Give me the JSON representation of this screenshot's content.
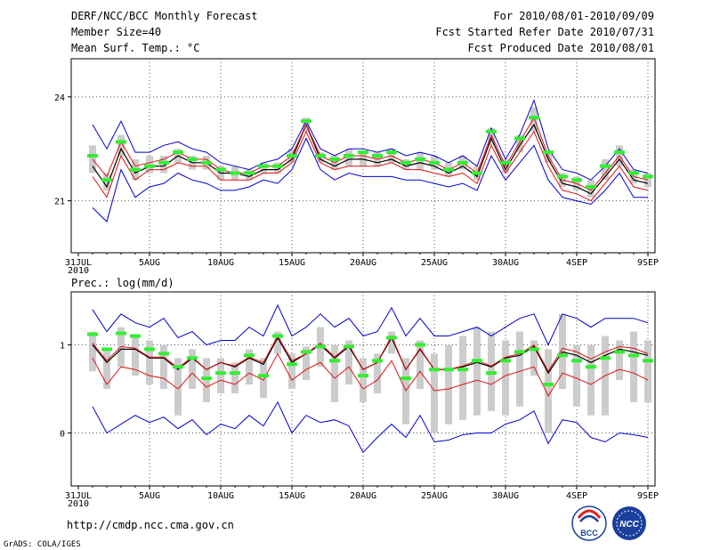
{
  "header": {
    "title": "DERF/NCC/BCC Monthly Forecast",
    "member_size": "Member Size=40",
    "variable": "Mean Surf. Temp.: °C",
    "period": "For 2010/08/01-2010/09/09",
    "started": "Fcst Started Refer Date 2010/07/31",
    "produced": "Fcst Produced Date 2010/08/01"
  },
  "footer": {
    "url": "http://cmdp.ncc.cma.gov.cn",
    "credit": "GrADS: COLA/IGES",
    "logo_bcc": "BCC",
    "logo_ncc": "NCC"
  },
  "colors": {
    "observed": "#33ee33",
    "spread_box": "#cccccc",
    "ensemble_mean": "#000000",
    "inner_band": "#dd1111",
    "outer_band": "#0000cc"
  },
  "chart_data": [
    {
      "type": "line",
      "panel": "temperature",
      "title": "Mean Surf. Temp.: °C",
      "x_tick_labels": [
        "31JUL",
        "5AUG",
        "10AUG",
        "15AUG",
        "20AUG",
        "25AUG",
        "30AUG",
        "4SEP",
        "9SEP"
      ],
      "x_tick_days": [
        0,
        5,
        10,
        15,
        20,
        25,
        30,
        35,
        40
      ],
      "year_label": "2010",
      "y_ticks": [
        21,
        24
      ],
      "ylim": [
        19.5,
        25.1
      ],
      "x": [
        1,
        2,
        3,
        4,
        5,
        6,
        7,
        8,
        9,
        10,
        11,
        12,
        13,
        14,
        15,
        16,
        17,
        18,
        19,
        20,
        21,
        22,
        23,
        24,
        25,
        26,
        27,
        28,
        29,
        30,
        31,
        32,
        33,
        34,
        35,
        36,
        37,
        38,
        39,
        40
      ],
      "series": [
        {
          "name": "ensemble mean",
          "values": [
            22.0,
            21.4,
            22.5,
            21.8,
            22.0,
            22.0,
            22.3,
            22.1,
            22.1,
            21.8,
            21.8,
            21.7,
            21.9,
            21.9,
            22.2,
            23.2,
            22.2,
            22.0,
            22.2,
            22.2,
            22.1,
            22.2,
            22.0,
            22.1,
            22.0,
            21.8,
            22.0,
            21.7,
            22.8,
            21.9,
            22.6,
            23.2,
            22.2,
            21.5,
            21.4,
            21.2,
            21.7,
            22.2,
            21.6,
            21.5
          ]
        },
        {
          "name": "upper outer",
          "values": [
            23.2,
            22.5,
            23.3,
            22.4,
            22.4,
            22.6,
            22.7,
            22.5,
            22.4,
            22.1,
            22.0,
            21.9,
            22.1,
            22.2,
            22.5,
            23.3,
            22.5,
            22.3,
            22.5,
            22.5,
            22.4,
            22.5,
            22.3,
            22.4,
            22.3,
            22.1,
            22.3,
            22.0,
            23.1,
            22.2,
            22.9,
            23.9,
            22.5,
            21.9,
            21.8,
            21.6,
            22.0,
            22.5,
            21.9,
            21.8
          ]
        },
        {
          "name": "upper inner",
          "values": [
            22.2,
            21.7,
            22.7,
            22.0,
            22.1,
            22.2,
            22.4,
            22.2,
            22.2,
            21.9,
            21.8,
            21.8,
            22.0,
            22.0,
            22.3,
            23.2,
            22.3,
            22.1,
            22.3,
            22.3,
            22.2,
            22.3,
            22.1,
            22.2,
            22.1,
            21.9,
            22.1,
            21.8,
            22.9,
            22.0,
            22.7,
            23.4,
            22.3,
            21.6,
            21.5,
            21.3,
            21.8,
            22.3,
            21.7,
            21.6
          ]
        },
        {
          "name": "lower inner",
          "values": [
            21.7,
            21.1,
            22.3,
            21.6,
            21.9,
            21.9,
            22.1,
            22.0,
            22.0,
            21.6,
            21.6,
            21.6,
            21.8,
            21.8,
            22.1,
            23.0,
            22.1,
            21.9,
            22.0,
            22.0,
            22.0,
            22.1,
            21.9,
            21.9,
            21.8,
            21.7,
            21.8,
            21.5,
            22.6,
            21.8,
            22.4,
            23.0,
            22.0,
            21.3,
            21.2,
            21.0,
            21.5,
            22.0,
            21.4,
            21.3
          ]
        },
        {
          "name": "lower outer",
          "values": [
            20.8,
            20.4,
            21.9,
            21.1,
            21.4,
            21.5,
            21.8,
            21.6,
            21.5,
            21.3,
            21.3,
            21.4,
            21.6,
            21.5,
            21.9,
            22.8,
            21.9,
            21.6,
            21.8,
            21.7,
            21.7,
            21.7,
            21.6,
            21.6,
            21.5,
            21.4,
            21.5,
            21.3,
            22.3,
            21.6,
            22.1,
            22.6,
            21.6,
            21.1,
            21.0,
            20.9,
            21.3,
            21.8,
            21.1,
            21.1
          ]
        },
        {
          "name": "observed",
          "values": [
            22.3,
            21.6,
            22.7,
            21.9,
            22.0,
            22.1,
            22.4,
            22.2,
            22.1,
            21.9,
            21.8,
            21.8,
            22.0,
            22.0,
            22.3,
            23.3,
            22.3,
            22.2,
            22.3,
            22.4,
            22.3,
            22.4,
            22.1,
            22.2,
            22.1,
            21.9,
            22.1,
            21.8,
            23.0,
            22.1,
            22.8,
            23.4,
            22.4,
            21.7,
            21.6,
            21.4,
            22.0,
            22.4,
            21.8,
            21.7
          ]
        }
      ],
      "box_low": [
        21.8,
        21.3,
        22.3,
        21.6,
        21.8,
        21.8,
        22.1,
        21.9,
        21.9,
        21.6,
        21.6,
        21.6,
        21.8,
        21.8,
        22.1,
        23.0,
        22.1,
        21.9,
        22.0,
        22.0,
        22.0,
        22.1,
        21.9,
        21.9,
        21.9,
        21.7,
        21.9,
        21.6,
        22.6,
        21.8,
        22.4,
        23.0,
        22.1,
        21.4,
        21.3,
        21.1,
        21.6,
        22.0,
        21.5,
        21.4
      ],
      "box_high": [
        22.6,
        21.8,
        22.9,
        22.2,
        22.3,
        22.3,
        22.5,
        22.3,
        22.3,
        22.0,
        22.0,
        21.9,
        22.1,
        22.1,
        22.5,
        23.4,
        22.4,
        22.3,
        22.5,
        22.4,
        22.4,
        22.5,
        22.2,
        22.4,
        22.3,
        22.1,
        22.3,
        22.0,
        23.1,
        22.2,
        22.9,
        23.7,
        22.4,
        21.8,
        21.7,
        21.6,
        22.2,
        22.6,
        21.9,
        21.8
      ]
    },
    {
      "type": "line",
      "panel": "precipitation",
      "title": "Prec.: log(mm/d)",
      "x_tick_labels": [
        "31JUL",
        "5AUG",
        "10AUG",
        "15AUG",
        "20AUG",
        "25AUG",
        "30AUG",
        "4SEP",
        "9SEP"
      ],
      "x_tick_days": [
        0,
        5,
        10,
        15,
        20,
        25,
        30,
        35,
        40
      ],
      "year_label": "2010",
      "y_ticks": [
        0,
        1
      ],
      "ylim": [
        -0.6,
        1.6
      ],
      "x": [
        1,
        2,
        3,
        4,
        5,
        6,
        7,
        8,
        9,
        10,
        11,
        12,
        13,
        14,
        15,
        16,
        17,
        18,
        19,
        20,
        21,
        22,
        23,
        24,
        25,
        26,
        27,
        28,
        29,
        30,
        31,
        32,
        33,
        34,
        35,
        36,
        37,
        38,
        39,
        40
      ],
      "series": [
        {
          "name": "ensemble mean",
          "values": [
            1.0,
            0.8,
            0.95,
            0.95,
            0.85,
            0.85,
            0.72,
            0.85,
            0.72,
            0.8,
            0.75,
            0.85,
            0.78,
            1.08,
            0.8,
            0.9,
            1.0,
            0.85,
            0.98,
            0.72,
            0.8,
            1.08,
            0.72,
            0.95,
            0.72,
            0.72,
            0.75,
            0.8,
            0.75,
            0.85,
            0.88,
            0.98,
            0.68,
            0.92,
            0.88,
            0.8,
            0.88,
            0.95,
            0.92,
            0.88
          ]
        },
        {
          "name": "upper outer",
          "values": [
            1.4,
            1.15,
            1.35,
            1.25,
            1.2,
            1.3,
            1.08,
            1.15,
            1.0,
            1.05,
            1.05,
            1.2,
            1.1,
            1.45,
            1.1,
            1.2,
            1.35,
            1.2,
            1.3,
            1.1,
            1.15,
            1.42,
            1.1,
            1.3,
            1.1,
            1.1,
            1.15,
            1.2,
            1.1,
            1.2,
            1.3,
            1.35,
            1.0,
            1.35,
            1.3,
            1.2,
            1.3,
            1.3,
            1.3,
            1.25
          ]
        },
        {
          "name": "upper inner",
          "values": [
            1.02,
            0.82,
            0.98,
            0.96,
            0.86,
            0.86,
            0.74,
            0.86,
            0.72,
            0.8,
            0.76,
            0.86,
            0.8,
            1.1,
            0.82,
            0.9,
            1.02,
            0.86,
            1.0,
            0.72,
            0.8,
            1.1,
            0.72,
            0.96,
            0.72,
            0.72,
            0.76,
            0.82,
            0.76,
            0.86,
            0.9,
            1.0,
            0.7,
            0.96,
            0.92,
            0.84,
            0.92,
            0.98,
            0.96,
            0.9
          ]
        },
        {
          "name": "lower inner",
          "values": [
            0.85,
            0.55,
            0.75,
            0.72,
            0.65,
            0.62,
            0.5,
            0.68,
            0.52,
            0.6,
            0.55,
            0.68,
            0.6,
            0.9,
            0.6,
            0.72,
            0.8,
            0.62,
            0.75,
            0.5,
            0.6,
            0.82,
            0.48,
            0.7,
            0.48,
            0.5,
            0.55,
            0.6,
            0.55,
            0.65,
            0.7,
            0.75,
            0.42,
            0.68,
            0.62,
            0.55,
            0.65,
            0.72,
            0.68,
            0.6
          ]
        },
        {
          "name": "lower outer",
          "values": [
            0.3,
            0.0,
            0.1,
            0.2,
            0.12,
            0.18,
            0.05,
            0.15,
            -0.02,
            0.1,
            0.05,
            0.2,
            0.08,
            0.35,
            0.0,
            0.2,
            0.12,
            0.15,
            0.08,
            -0.22,
            -0.05,
            0.1,
            -0.05,
            0.2,
            -0.1,
            -0.08,
            -0.02,
            0.0,
            0.0,
            0.1,
            0.15,
            0.25,
            -0.12,
            0.15,
            0.12,
            -0.05,
            -0.1,
            0.0,
            -0.02,
            -0.05
          ]
        },
        {
          "name": "observed",
          "values": [
            1.12,
            0.95,
            1.13,
            1.1,
            0.95,
            0.9,
            0.75,
            0.85,
            0.62,
            0.68,
            0.68,
            0.88,
            0.65,
            1.1,
            0.78,
            0.92,
            0.98,
            0.82,
            0.98,
            0.65,
            0.82,
            1.08,
            0.62,
            1.0,
            0.72,
            0.72,
            0.72,
            0.82,
            0.68,
            0.82,
            0.92,
            0.95,
            0.55,
            0.88,
            0.82,
            0.75,
            0.85,
            0.92,
            0.88,
            0.82
          ]
        }
      ],
      "box_low": [
        0.7,
        0.5,
        0.75,
        0.65,
        0.55,
        0.5,
        0.2,
        0.5,
        0.35,
        0.45,
        0.45,
        0.55,
        0.4,
        0.9,
        0.5,
        0.6,
        0.75,
        0.35,
        0.55,
        0.35,
        0.45,
        0.9,
        0.1,
        0.5,
        0.0,
        0.1,
        0.15,
        0.2,
        0.25,
        0.2,
        0.3,
        0.65,
        0.0,
        0.5,
        0.3,
        0.2,
        0.2,
        0.6,
        0.35,
        0.35
      ],
      "box_high": [
        1.15,
        0.95,
        1.2,
        1.1,
        1.05,
        1.0,
        0.85,
        0.95,
        0.85,
        0.85,
        0.8,
        0.95,
        0.85,
        1.15,
        0.9,
        0.98,
        1.2,
        1.0,
        1.05,
        0.85,
        0.9,
        1.15,
        0.85,
        1.05,
        0.9,
        1.0,
        1.1,
        1.2,
        1.15,
        1.05,
        1.15,
        1.05,
        0.95,
        1.35,
        1.0,
        1.0,
        1.1,
        1.05,
        1.15,
        1.05
      ]
    }
  ]
}
